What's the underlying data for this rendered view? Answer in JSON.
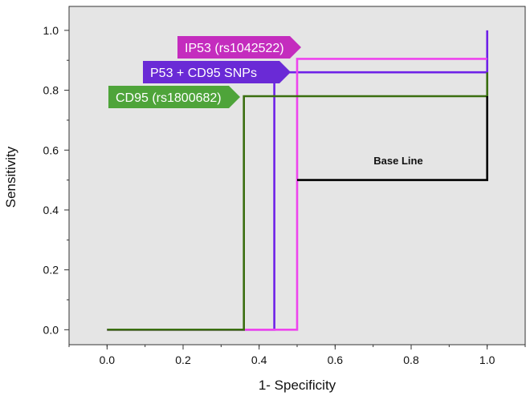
{
  "chart_data": {
    "type": "line",
    "title": "",
    "xlabel": "1- Specificity",
    "ylabel": "Sensitivity",
    "xlim": [
      -0.1,
      1.1
    ],
    "ylim": [
      -0.05,
      1.08
    ],
    "x_ticks": [
      0.0,
      0.2,
      0.4,
      0.6,
      0.8,
      1.0
    ],
    "x_tick_labels": [
      "0.0",
      "0.2",
      "0.4",
      "0.6",
      "0.8",
      "1.0"
    ],
    "y_ticks": [
      0.0,
      0.2,
      0.4,
      0.6,
      0.8,
      1.0
    ],
    "y_tick_labels": [
      "0.0",
      "0.2",
      "0.4",
      "0.6",
      "0.8",
      "1.0"
    ],
    "grid": false,
    "background_color": "#e5e5e5",
    "series": [
      {
        "name": "P53 + CD95  SNPs",
        "color": "#6f22e8",
        "x": [
          0.0,
          0.44,
          0.44,
          1.0,
          1.0
        ],
        "y": [
          0.0,
          0.0,
          0.86,
          0.86,
          1.0
        ]
      },
      {
        "name": "IP53 (rs1042522)",
        "color": "#ee44ee",
        "x": [
          0.0,
          0.5,
          0.5,
          1.0
        ],
        "y": [
          0.0,
          0.0,
          0.905,
          0.905
        ]
      },
      {
        "name": "CD95 (rs1800682)",
        "color": "#3a6e10",
        "x": [
          0.0,
          0.36,
          0.36,
          1.0,
          1.0
        ],
        "y": [
          0.0,
          0.0,
          0.78,
          0.78,
          0.86
        ]
      },
      {
        "name": "Base Line",
        "color": "#000000",
        "x": [
          0.5,
          1.0,
          1.0
        ],
        "y": [
          0.5,
          0.5,
          0.78
        ]
      }
    ],
    "tags": [
      {
        "text": "IP53 (rs1042522)",
        "color": "#c42cbe"
      },
      {
        "text": "P53 + CD95  SNPs",
        "color": "#6a2ad6"
      },
      {
        "text": "CD95 (rs1800682)",
        "color": "#4ea43a"
      }
    ],
    "annotation": {
      "text": "Base Line"
    }
  }
}
